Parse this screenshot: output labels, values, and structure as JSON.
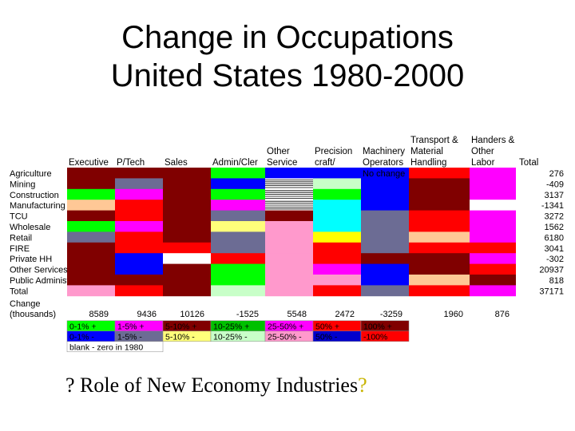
{
  "title": [
    "Change in Occupations",
    "United States 1980-2000"
  ],
  "chart_data": {
    "type": "heatmap",
    "columns": [
      {
        "header": [
          "Executive"
        ],
        "change": "8589"
      },
      {
        "header": [
          "P/Tech"
        ],
        "change": "9436"
      },
      {
        "header": [
          "Sales"
        ],
        "change": "10126"
      },
      {
        "header": [
          "Admin/Cler"
        ],
        "change": "-1525"
      },
      {
        "header": [
          "Other",
          "Service"
        ],
        "change": "5548"
      },
      {
        "header": [
          "Precision",
          "craft/"
        ],
        "change": "2472"
      },
      {
        "header": [
          "Machinery",
          "Operators"
        ],
        "change": "-3259"
      },
      {
        "header": [
          "Transport &",
          "Material",
          "Handling"
        ],
        "change": "1960"
      },
      {
        "header": [
          "Handers &",
          "Other",
          "Labor"
        ],
        "change": "876"
      }
    ],
    "total_header": "Total",
    "rows": [
      {
        "label": "Agriculture",
        "total": "276",
        "cells": [
          "dm",
          "dm",
          "dm",
          "g",
          "b",
          "b",
          "b",
          "r",
          "m"
        ]
      },
      {
        "label": "Mining",
        "total": "-409",
        "cells": [
          "dm",
          "s",
          "dm",
          "b",
          "x",
          "lg",
          "b",
          "dm",
          "m"
        ]
      },
      {
        "label": "Construction",
        "total": "3137",
        "cells": [
          "g",
          "m",
          "dm",
          "g",
          "x",
          "g",
          "b",
          "dm",
          "m"
        ]
      },
      {
        "label": "Manufacturing",
        "total": "-1341",
        "cells": [
          "o",
          "r",
          "dm",
          "m",
          "x",
          "c",
          "b",
          "dm",
          "w"
        ]
      },
      {
        "label": "TCU",
        "total": "3272",
        "cells": [
          "dm",
          "r",
          "dm",
          "s",
          "dm",
          "c",
          "s",
          "r",
          "m"
        ]
      },
      {
        "label": "Wholesale",
        "total": "1562",
        "cells": [
          "g",
          "m",
          "dm",
          "ly",
          "pk",
          "c",
          "s",
          "r",
          "m"
        ]
      },
      {
        "label": "Retail",
        "total": "6180",
        "cells": [
          "s",
          "r",
          "dm",
          "s",
          "pk",
          "y",
          "s",
          "o",
          "m"
        ]
      },
      {
        "label": "FIRE",
        "total": "3041",
        "cells": [
          "dm",
          "r",
          "r",
          "s",
          "pk",
          "r",
          "s",
          "r",
          "r"
        ]
      },
      {
        "label": "Private HH",
        "total": "-302",
        "cells": [
          "dm",
          "b",
          "w",
          "r",
          "pk",
          "r",
          "dm",
          "dm",
          "m"
        ]
      },
      {
        "label": "Other Services",
        "total": "20937",
        "cells": [
          "dm",
          "b",
          "dm",
          "g",
          "pk",
          "m",
          "b",
          "dm",
          "r"
        ]
      },
      {
        "label": "Public Administration",
        "total": "818",
        "cells": [
          "dm",
          "dm",
          "dm",
          "g",
          "pk",
          "pk",
          "b",
          "o",
          "dm"
        ]
      },
      {
        "label": "Total",
        "total": "37171",
        "cells": [
          "pk",
          "r",
          "dm",
          "lg",
          "pk",
          "r",
          "s",
          "r",
          "m"
        ]
      }
    ],
    "no_change_label": "No change",
    "change_label": [
      "Change",
      "(thousands)"
    ],
    "legend": {
      "positive": [
        {
          "label": "0-1% +",
          "color": "#00ff00"
        },
        {
          "label": "1-5% +",
          "color": "#ff00ff"
        },
        {
          "label": "5-10% +",
          "color": "#800000"
        },
        {
          "label": "10-25% +",
          "color": "#00c000"
        },
        {
          "label": "25-50% +",
          "color": "#ff00ff"
        },
        {
          "label": "50% +",
          "color": "#ff0000"
        },
        {
          "label": "100% +",
          "color": "#800000"
        }
      ],
      "negative": [
        {
          "label": "0-1% -",
          "color": "#0000ff"
        },
        {
          "label": "1-5% -",
          "color": "#6c6c94"
        },
        {
          "label": "5-10% -",
          "color": "#ffff7a"
        },
        {
          "label": "10-25% -",
          "color": "#c8ffc8"
        },
        {
          "label": "25-50% -",
          "color": "#ff99cc"
        },
        {
          "label": "50% -",
          "color": "#0000cc"
        },
        {
          "label": "-100%",
          "color": "#ff0000"
        }
      ],
      "blank_label": "blank - zero in 1980"
    },
    "palette": {
      "dm": "#800000",
      "g": "#00ff00",
      "b": "#0000ff",
      "r": "#ff0000",
      "m": "#ff00ff",
      "s": "#6c6c94",
      "lg": "#c8ffc8",
      "o": "#ffc896",
      "c": "#00ffff",
      "pk": "#ff99cc",
      "ly": "#ffff7a",
      "y": "#ffff00",
      "w": "#ffffff",
      "x": "#ffffff"
    }
  },
  "footer": {
    "q1": "?",
    "text": " Role of New Economy Industries",
    "q2": "?"
  }
}
